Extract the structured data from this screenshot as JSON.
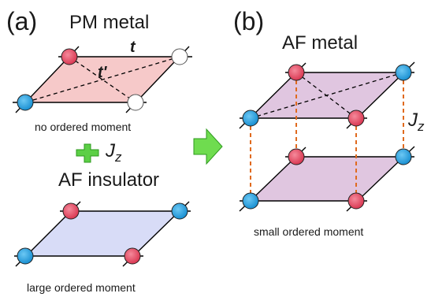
{
  "panel_a": {
    "tag": "(a)",
    "top_title": "PM metal",
    "hop_t": "t",
    "hop_tprime": "t'",
    "top_caption": "no ordered moment",
    "plus_label_J": "J",
    "plus_label_sub": "z",
    "bottom_title": "AF insulator",
    "bottom_caption": "large ordered moment"
  },
  "panel_b": {
    "tag": "(b)",
    "title": "AF metal",
    "jz_J": "J",
    "jz_sub": "z",
    "caption": "small ordered moment"
  },
  "colors": {
    "site_red": "#e04560",
    "site_blue": "#1f9fe0",
    "site_empty": "#ffffff",
    "plane_pm": "#f6c9c9",
    "plane_af_ins": "#d8dcf7",
    "plane_af_metal": "#e0c6e0",
    "plus": "#4cc63a",
    "arrow": "#4cc63a",
    "interlayer": "#e06a1e"
  }
}
